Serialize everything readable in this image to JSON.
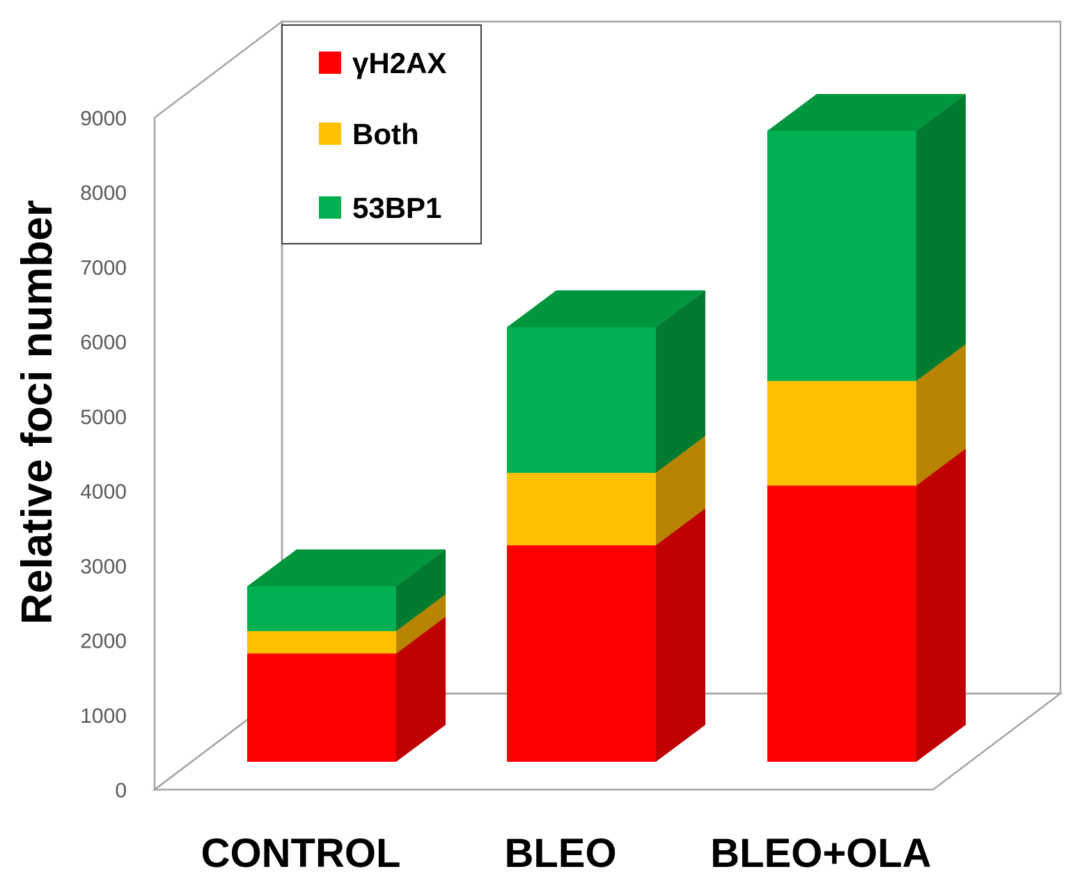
{
  "chart_data": {
    "type": "bar",
    "stacked": true,
    "three_d": true,
    "title": "",
    "xlabel": "",
    "ylabel": "Relative foci number",
    "ylim": [
      0,
      9000
    ],
    "yticks": [
      0,
      1000,
      2000,
      3000,
      4000,
      5000,
      6000,
      7000,
      8000,
      9000
    ],
    "grid": false,
    "legend_position": "top-left",
    "categories": [
      "CONTROL",
      "BLEO",
      "BLEO+OLA"
    ],
    "series": [
      {
        "name": "γH2AX",
        "color": "#ff0000",
        "side_color": "#c00000",
        "top_color": "#ff3030",
        "values": [
          1450,
          2900,
          3700
        ]
      },
      {
        "name": "Both",
        "color": "#ffc000",
        "side_color": "#b88400",
        "top_color": "#ffd040",
        "values": [
          300,
          970,
          1400
        ]
      },
      {
        "name": "53BP1",
        "color": "#00b050",
        "side_color": "#007a2e",
        "top_color": "#00963d",
        "values": [
          600,
          1950,
          3350
        ]
      }
    ]
  }
}
